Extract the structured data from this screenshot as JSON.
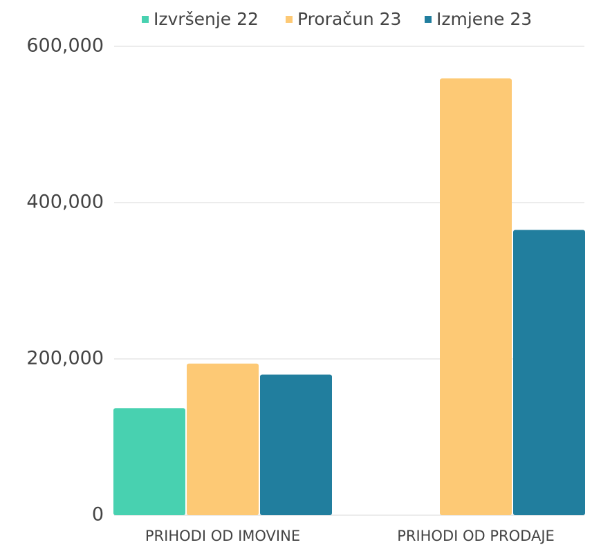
{
  "chart_data": {
    "type": "bar",
    "categories": [
      "PRIHODI OD IMOVINE",
      "PRIHODI OD PRODAJE"
    ],
    "series": [
      {
        "name": "Izvršenje 22",
        "color": "#48d1b0",
        "values": [
          137000,
          0
        ]
      },
      {
        "name": "Proračun 23",
        "color": "#fdc975",
        "values": [
          194000,
          559000
        ]
      },
      {
        "name": "Izmjene 23",
        "color": "#217e9e",
        "values": [
          180000,
          365000
        ]
      }
    ],
    "ylim": [
      0,
      600000
    ],
    "yticks": [
      0,
      {
        "value": 200000,
        "label": "200,000"
      },
      {
        "value": 400000,
        "label": "400,000"
      },
      {
        "value": 600000,
        "label": "600,000"
      }
    ],
    "grid": true,
    "legend": "top"
  }
}
